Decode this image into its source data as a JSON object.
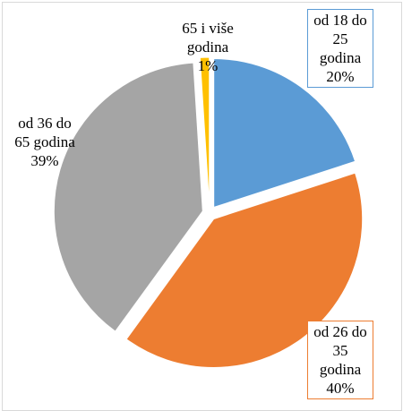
{
  "chart_data": {
    "type": "pie",
    "categories": [
      "od 18 do 25 godina",
      "od 26 do 35 godina",
      "od 36 do 65 godina",
      "65 i više godina"
    ],
    "values": [
      20,
      40,
      39,
      1
    ],
    "value_labels": [
      "20%",
      "40%",
      "39%",
      "1%"
    ],
    "colors": [
      "#5b9bd5",
      "#ed7d31",
      "#a5a5a5",
      "#ffc000"
    ]
  }
}
